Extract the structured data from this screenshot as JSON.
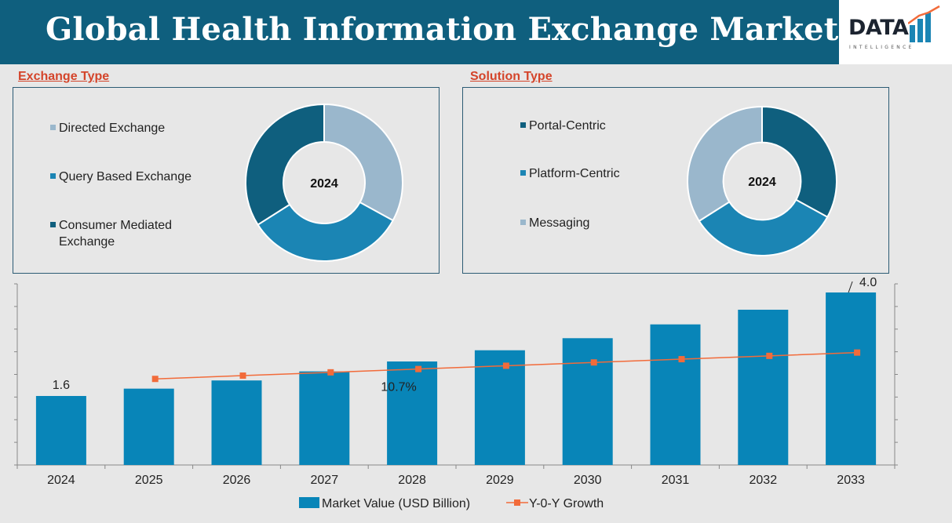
{
  "header": {
    "title": "Global Health Information Exchange Market",
    "logo_text": "DATA",
    "logo_sub": "INTELLIGENCE"
  },
  "colors": {
    "header_bg": "#0f5f7e",
    "dark_teal": "#0f5f7e",
    "mid_blue": "#1b85b4",
    "light_blue": "#9ab7cc",
    "bar": "#0885b8",
    "line": "#f26b3a",
    "section_label": "#d4442a"
  },
  "exchange_type": {
    "label": "Exchange Type",
    "center_label": "2024",
    "items": [
      {
        "label": "Directed Exchange",
        "color": "#9ab7cc",
        "icon": "square-bullet"
      },
      {
        "label": "Query Based Exchange",
        "color": "#1b85b4",
        "icon": "square-bullet"
      },
      {
        "label_line1": "Consumer Mediated",
        "label_line2": "Exchange",
        "color": "#0f5f7e",
        "icon": "square-bullet"
      }
    ]
  },
  "solution_type": {
    "label": "Solution Type",
    "center_label": "2024",
    "items": [
      {
        "label": "Portal-Centric",
        "color": "#0f5f7e",
        "icon": "square-bullet"
      },
      {
        "label": "Platform-Centric",
        "color": "#1b85b4",
        "icon": "square-bullet"
      },
      {
        "label": "Messaging",
        "color": "#9ab7cc",
        "icon": "square-bullet"
      }
    ]
  },
  "chart_data": [
    {
      "type": "pie",
      "title": "Exchange Type",
      "center_label": "2024",
      "categories": [
        "Directed Exchange",
        "Query Based Exchange",
        "Consumer Mediated Exchange"
      ],
      "values": [
        33,
        33,
        34
      ]
    },
    {
      "type": "pie",
      "title": "Solution Type",
      "center_label": "2024",
      "categories": [
        "Portal-Centric",
        "Platform-Centric",
        "Messaging"
      ],
      "values": [
        33,
        33,
        34
      ]
    },
    {
      "type": "bar",
      "categories": [
        "2024",
        "2025",
        "2026",
        "2027",
        "2028",
        "2029",
        "2030",
        "2031",
        "2032",
        "2033"
      ],
      "series": [
        {
          "name": "Market Value (USD Billion)",
          "type": "bar",
          "values": [
            1.6,
            1.77,
            1.96,
            2.17,
            2.4,
            2.66,
            2.94,
            3.26,
            3.6,
            4.0
          ]
        },
        {
          "name": "Y-0-Y Growth",
          "type": "line",
          "values": [
            null,
            9.5,
            9.9,
            10.3,
            10.7,
            11.1,
            11.5,
            11.9,
            12.3,
            12.7
          ]
        }
      ],
      "data_labels": [
        {
          "category": "2024",
          "text": "1.6"
        },
        {
          "category": "2033",
          "text": "4.0"
        }
      ],
      "annotation": "10.7%",
      "ylim": [
        0,
        4.2
      ],
      "legend_position": "bottom",
      "grid": false
    }
  ]
}
